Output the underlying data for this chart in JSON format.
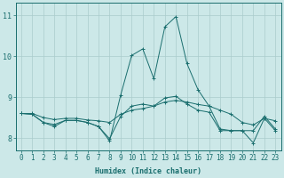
{
  "xlabel": "Humidex (Indice chaleur)",
  "bg_color": "#cce8e8",
  "grid_color": "#aacccc",
  "line_color": "#1a6e6e",
  "xlim": [
    -0.5,
    23.5
  ],
  "ylim": [
    7.7,
    11.3
  ],
  "yticks": [
    8,
    9,
    10,
    11
  ],
  "xticks": [
    0,
    1,
    2,
    3,
    4,
    5,
    6,
    7,
    8,
    9,
    10,
    11,
    12,
    13,
    14,
    15,
    16,
    17,
    18,
    19,
    20,
    21,
    22,
    23
  ],
  "series1_y": [
    8.6,
    8.6,
    8.5,
    8.45,
    8.48,
    8.48,
    8.44,
    8.42,
    8.38,
    8.58,
    8.68,
    8.72,
    8.78,
    8.88,
    8.92,
    8.88,
    8.82,
    8.78,
    8.68,
    8.58,
    8.38,
    8.32,
    8.48,
    8.42
  ],
  "series2_y": [
    8.6,
    8.58,
    8.38,
    8.28,
    8.43,
    8.43,
    8.38,
    8.28,
    7.93,
    9.05,
    10.02,
    10.18,
    9.45,
    10.72,
    10.97,
    9.82,
    9.18,
    8.78,
    8.22,
    8.18,
    8.18,
    7.88,
    8.48,
    8.18
  ],
  "series3_y": [
    8.6,
    8.58,
    8.38,
    8.33,
    8.43,
    8.43,
    8.38,
    8.28,
    7.98,
    8.53,
    8.78,
    8.83,
    8.78,
    8.98,
    9.02,
    8.83,
    8.68,
    8.63,
    8.18,
    8.18,
    8.18,
    8.18,
    8.53,
    8.22
  ],
  "tick_fontsize": 5.5,
  "xlabel_fontsize": 6.0
}
